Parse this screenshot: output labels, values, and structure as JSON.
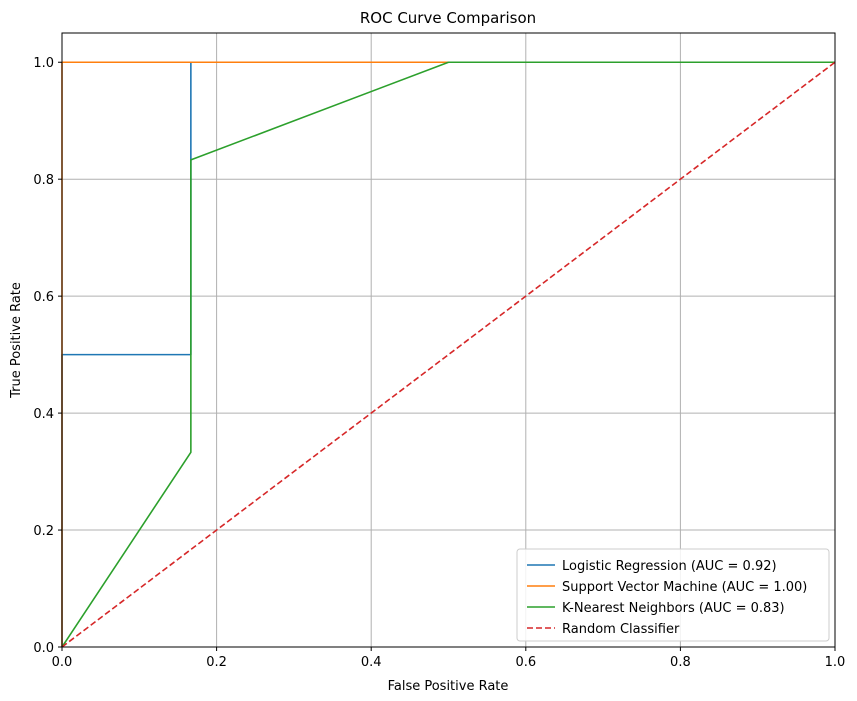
{
  "chart_data": {
    "type": "line",
    "title": "ROC Curve Comparison",
    "xlabel": "False Positive Rate",
    "ylabel": "True Positive Rate",
    "xlim": [
      0,
      1
    ],
    "ylim": [
      0,
      1.05
    ],
    "x_ticks": [
      "0.0",
      "0.2",
      "0.4",
      "0.6",
      "0.8",
      "1.0"
    ],
    "y_ticks": [
      "0.0",
      "0.2",
      "0.4",
      "0.6",
      "0.8",
      "1.0"
    ],
    "grid": true,
    "legend_position": "lower-right",
    "series": [
      {
        "name": "Logistic Regression (AUC = 0.92)",
        "color": "#1f77b4",
        "dash": "solid",
        "x": [
          0.0,
          0.0,
          0.1667,
          0.1667,
          1.0
        ],
        "y": [
          0.0,
          0.5,
          0.5,
          1.0,
          1.0
        ]
      },
      {
        "name": "Support Vector Machine (AUC = 1.00)",
        "color": "#ff7f0e",
        "dash": "solid",
        "x": [
          0.0,
          0.0,
          1.0
        ],
        "y": [
          0.0,
          1.0,
          1.0
        ]
      },
      {
        "name": "K-Nearest Neighbors (AUC = 0.83)",
        "color": "#2ca02c",
        "dash": "solid",
        "x": [
          0.0,
          0.1667,
          0.1667,
          0.5,
          1.0
        ],
        "y": [
          0.0,
          0.333,
          0.833,
          1.0,
          1.0
        ]
      },
      {
        "name": "Random Classifier",
        "color": "#d62728",
        "dash": "dashed",
        "x": [
          0.0,
          1.0
        ],
        "y": [
          0.0,
          1.0
        ]
      }
    ]
  }
}
